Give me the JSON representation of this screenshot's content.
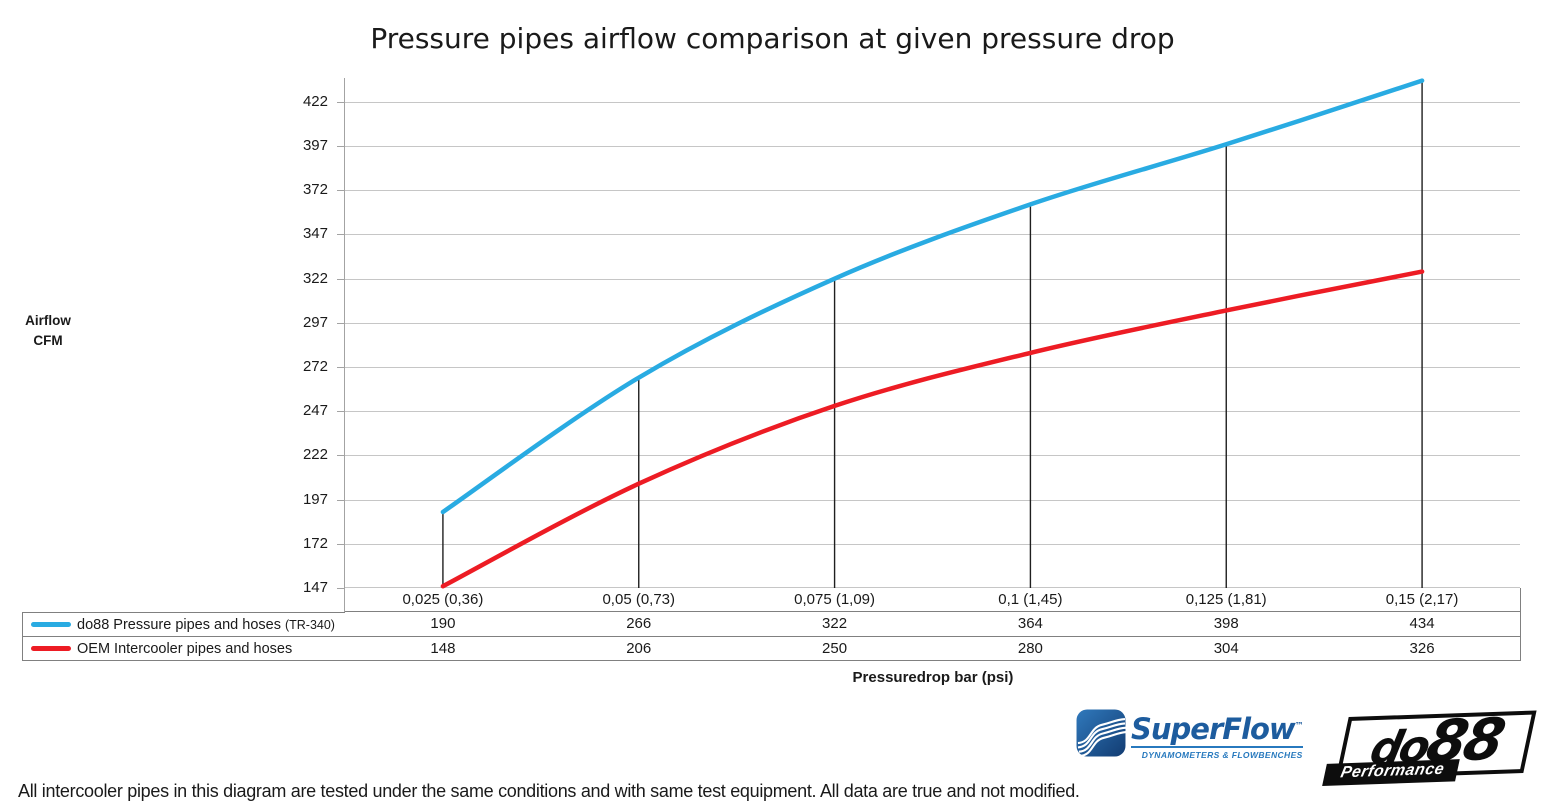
{
  "title": "Pressure pipes airflow comparison at given pressure drop",
  "footer_note": "All intercooler pipes in this diagram are tested under the same conditions and with same test equipment. All data are true and not modified.",
  "chart_data": {
    "type": "line",
    "title": "Pressure pipes airflow comparison at given pressure drop",
    "xlabel": "Pressuredrop bar (psi)",
    "ylabel": "Airflow CFM",
    "ylabel_line1": "Airflow",
    "ylabel_line2": "CFM",
    "categories": [
      "0,025 (0,36)",
      "0,05 (0,73)",
      "0,075 (1,09)",
      "0,1 (1,45)",
      "0,125 (1,81)",
      "0,15 (2,17)"
    ],
    "y_ticks": [
      147,
      172,
      197,
      222,
      247,
      272,
      297,
      322,
      347,
      372,
      397,
      422
    ],
    "ylim": [
      147,
      435.5
    ],
    "grid": "horizontal gridlines every 25 CFM",
    "legend_position": "bottom-left, merged with data table under x-axis",
    "smoothed_lines": true,
    "drop_lines_from_first_series": true,
    "colors": {
      "gridline": "#C6C6C6",
      "axis": "#A3A3A3",
      "drop_line": "#1F1F1F",
      "table_border": "#808080"
    },
    "series": [
      {
        "name": "do88 Pressure pipes and hoses",
        "suffix": "(TR-340)",
        "color": "#29ABE2",
        "values": [
          190,
          266,
          322,
          364,
          398,
          434
        ]
      },
      {
        "name": "OEM Intercooler pipes and hoses",
        "suffix": "",
        "color": "#ED1C24",
        "values": [
          148,
          206,
          250,
          280,
          304,
          326
        ]
      }
    ]
  },
  "logos": {
    "superflow": {
      "word": "SuperFlow",
      "tm": "™",
      "tagline": "DYNAMOMETERS & FLOWBENCHES",
      "brand_blue": "#1D5C9E",
      "tag_blue": "#2779BE"
    },
    "do88": {
      "word_part1": "do",
      "word_part2": "88",
      "tagline": "Performance"
    }
  }
}
